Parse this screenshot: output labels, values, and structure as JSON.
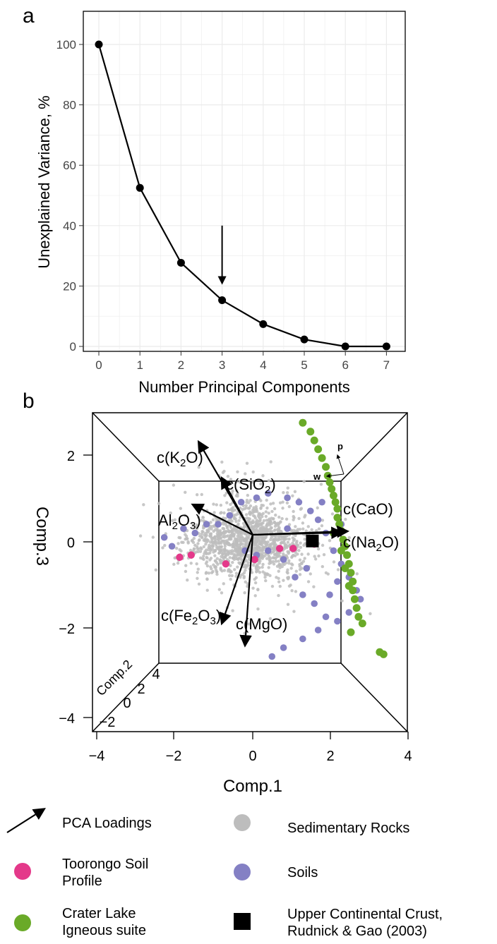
{
  "panel_labels": {
    "a": "a",
    "b": "b"
  },
  "colors": {
    "line": "#000000",
    "grid": "#ebebeb",
    "sedimentary": "#bdbdbd",
    "soils": "#8480c4",
    "toorongo": "#e4398a",
    "crater": "#6aaa28",
    "ucc": "#000000"
  },
  "chart_data": [
    {
      "type": "line",
      "panel": "a",
      "xlabel": "Number Principal Components",
      "ylabel": "Unexplained Variance, %",
      "x": [
        0,
        1,
        2,
        3,
        4,
        5,
        6,
        7
      ],
      "values": [
        100,
        52.5,
        27.7,
        15.3,
        7.4,
        2.3,
        0,
        0
      ],
      "xlim": [
        0,
        7
      ],
      "ylim": [
        0,
        100
      ],
      "xticks": [
        "0",
        "1",
        "2",
        "3",
        "4",
        "5",
        "6",
        "7"
      ],
      "yticks": [
        "0",
        "20",
        "40",
        "60",
        "80",
        "100"
      ],
      "grid": true,
      "annotation": {
        "type": "arrow",
        "x": 3,
        "y_from": 40,
        "y_to": 21
      }
    },
    {
      "type": "scatter",
      "panel": "b",
      "xlabel": "Comp.1",
      "ylabel": "Comp.3",
      "zlabel": "Comp.2",
      "xticks": [
        "−4",
        "−2",
        "0",
        "2",
        "4"
      ],
      "yticks": [
        "−4",
        "−2",
        "0",
        "2"
      ],
      "zticks": [
        "−2",
        "0",
        "2",
        "4"
      ],
      "orientation_labels": {
        "p": "p",
        "w": "w"
      },
      "loadings": [
        {
          "name": "K2O",
          "label": "c(K",
          "sub": "2",
          "after": "O)",
          "x": -1.4,
          "y": 2.1
        },
        {
          "name": "SiO2",
          "label": "c(SiO",
          "sub": "2",
          "after": ")",
          "x": -0.8,
          "y": 1.28
        },
        {
          "name": "Al2O3",
          "label": "Al",
          "sub": "2",
          "after": "O",
          "sub2": "3",
          "after2": ")",
          "x": -1.55,
          "y": 0.68
        },
        {
          "name": "CaO",
          "label": "c(CaO)",
          "x": 2.45,
          "y": 0.08
        },
        {
          "name": "Na2O",
          "label": "c(Na",
          "sub": "2",
          "after": "O)",
          "x": 2.3,
          "y": 0.05
        },
        {
          "name": "Fe2O3",
          "label": "c(Fe",
          "sub": "2",
          "after": "O",
          "sub2": "3",
          "after2": ")",
          "x": -0.8,
          "y": -2.0
        },
        {
          "name": "MgO",
          "label": "c(MgO)",
          "x": -0.2,
          "y": -2.5
        }
      ],
      "series": [
        {
          "name": "Soils",
          "points": [
            [
              -2.3,
              0.1
            ],
            [
              -2.1,
              -0.1
            ],
            [
              -1.8,
              0.3
            ],
            [
              -1.5,
              0.2
            ],
            [
              -1.2,
              0.4
            ],
            [
              -0.9,
              0.4
            ],
            [
              -0.6,
              0.6
            ],
            [
              -0.3,
              0.9
            ],
            [
              0.1,
              1.0
            ],
            [
              0.4,
              1.1
            ],
            [
              0.9,
              1.0
            ],
            [
              1.2,
              0.9
            ],
            [
              1.5,
              0.7
            ],
            [
              1.7,
              0.5
            ],
            [
              1.9,
              0.2
            ],
            [
              2.1,
              -0.2
            ],
            [
              2.3,
              -0.5
            ],
            [
              2.5,
              -0.8
            ],
            [
              2.7,
              -1.1
            ],
            [
              2.8,
              -1.3
            ],
            [
              2.5,
              -1.6
            ],
            [
              2.2,
              -1.8
            ],
            [
              1.9,
              -1.7
            ],
            [
              1.6,
              -1.4
            ],
            [
              1.3,
              -1.2
            ],
            [
              1.1,
              -0.8
            ],
            [
              0.8,
              -0.4
            ],
            [
              0.4,
              -0.2
            ],
            [
              0.1,
              -0.3
            ],
            [
              -0.2,
              -0.2
            ],
            [
              1.7,
              -2.0
            ],
            [
              1.3,
              -2.2
            ],
            [
              0.8,
              -2.4
            ],
            [
              0.5,
              -2.6
            ],
            [
              2.2,
              -0.9
            ],
            [
              2.0,
              -1.2
            ],
            [
              1.8,
              0.9
            ],
            [
              2.3,
              0.4
            ],
            [
              1.4,
              -0.6
            ],
            [
              0.9,
              0.3
            ]
          ]
        },
        {
          "name": "Toorongo Soil Profile",
          "points": [
            [
              -1.9,
              -0.35
            ],
            [
              -1.6,
              -0.3
            ],
            [
              -0.7,
              -0.5
            ],
            [
              0.05,
              -0.4
            ],
            [
              0.7,
              -0.15
            ],
            [
              1.05,
              -0.15
            ],
            [
              1.6,
              -0.05
            ]
          ]
        },
        {
          "name": "Crater Lake Igneous suite",
          "points": [
            [
              1.3,
              2.7
            ],
            [
              1.5,
              2.5
            ],
            [
              1.6,
              2.3
            ],
            [
              1.7,
              2.1
            ],
            [
              1.8,
              1.9
            ],
            [
              1.9,
              1.7
            ],
            [
              1.95,
              1.5
            ],
            [
              2.0,
              1.35
            ],
            [
              2.05,
              1.2
            ],
            [
              2.1,
              1.05
            ],
            [
              2.15,
              0.9
            ],
            [
              2.2,
              0.75
            ],
            [
              2.2,
              0.55
            ],
            [
              2.25,
              0.4
            ],
            [
              2.3,
              0.25
            ],
            [
              2.35,
              0.05
            ],
            [
              2.4,
              -0.1
            ],
            [
              2.45,
              -0.3
            ],
            [
              2.5,
              -0.5
            ],
            [
              2.55,
              -0.7
            ],
            [
              2.6,
              -0.9
            ],
            [
              2.6,
              -1.1
            ],
            [
              2.65,
              -1.3
            ],
            [
              2.7,
              -1.5
            ],
            [
              2.75,
              -1.7
            ],
            [
              2.85,
              -1.85
            ],
            [
              2.55,
              -2.05
            ],
            [
              3.3,
              -2.5
            ],
            [
              3.4,
              -2.55
            ],
            [
              2.1,
              0.2
            ],
            [
              2.3,
              -0.2
            ],
            [
              2.4,
              -0.6
            ],
            [
              2.5,
              -1.0
            ]
          ]
        },
        {
          "name": "Upper Continental Crust, Rudnick & Gao (2003)",
          "points": [
            [
              1.55,
              0.02
            ]
          ]
        }
      ],
      "legend": [
        {
          "symbol": "arrow",
          "label": "PCA Loadings"
        },
        {
          "symbol": "sedimentary",
          "label": "Sedimentary Rocks"
        },
        {
          "symbol": "toorongo",
          "label": "Toorongo Soil Profile"
        },
        {
          "symbol": "soils",
          "label": "Soils"
        },
        {
          "symbol": "crater",
          "label": "Crater Lake Igneous suite"
        },
        {
          "symbol": "ucc",
          "label": "Upper Continental Crust, Rudnick & Gao (2003)"
        }
      ],
      "legend_placement": "bottom",
      "legend_text_lines": {
        "pca": [
          "PCA Loadings"
        ],
        "sed": [
          "Sedimentary Rocks"
        ],
        "toor": [
          "Toorongo Soil",
          "Profile"
        ],
        "soils": [
          "Soils"
        ],
        "crater": [
          "Crater Lake",
          "Igneous suite"
        ],
        "ucc": [
          "Upper Continental Crust,",
          "Rudnick & Gao (2003)"
        ]
      }
    }
  ]
}
